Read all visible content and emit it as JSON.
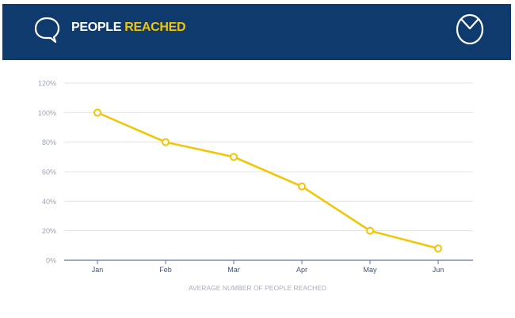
{
  "header": {
    "title_part1": "PEOPLE",
    "title_part2": "REACHED",
    "left_icon": "speech-bubble-icon",
    "right_icon": "pie-chart-icon",
    "background_color": "#0f3a6e",
    "accent_color": "#f5c400"
  },
  "chart_data": {
    "type": "line",
    "categories": [
      "Jan",
      "Feb",
      "Mar",
      "Apr",
      "May",
      "Jun"
    ],
    "series": [
      {
        "values": [
          100,
          80,
          70,
          50,
          20,
          8
        ],
        "color": "#f5c400"
      }
    ],
    "title": "",
    "xlabel": "AVERAGE NUMBER OF PEOPLE REACHED",
    "ylabel": "",
    "ylim": [
      0,
      120
    ],
    "yticks": [
      "0%",
      "20%",
      "40%",
      "60%",
      "80%",
      "100%",
      "120%"
    ],
    "grid": true,
    "legend": "none"
  }
}
